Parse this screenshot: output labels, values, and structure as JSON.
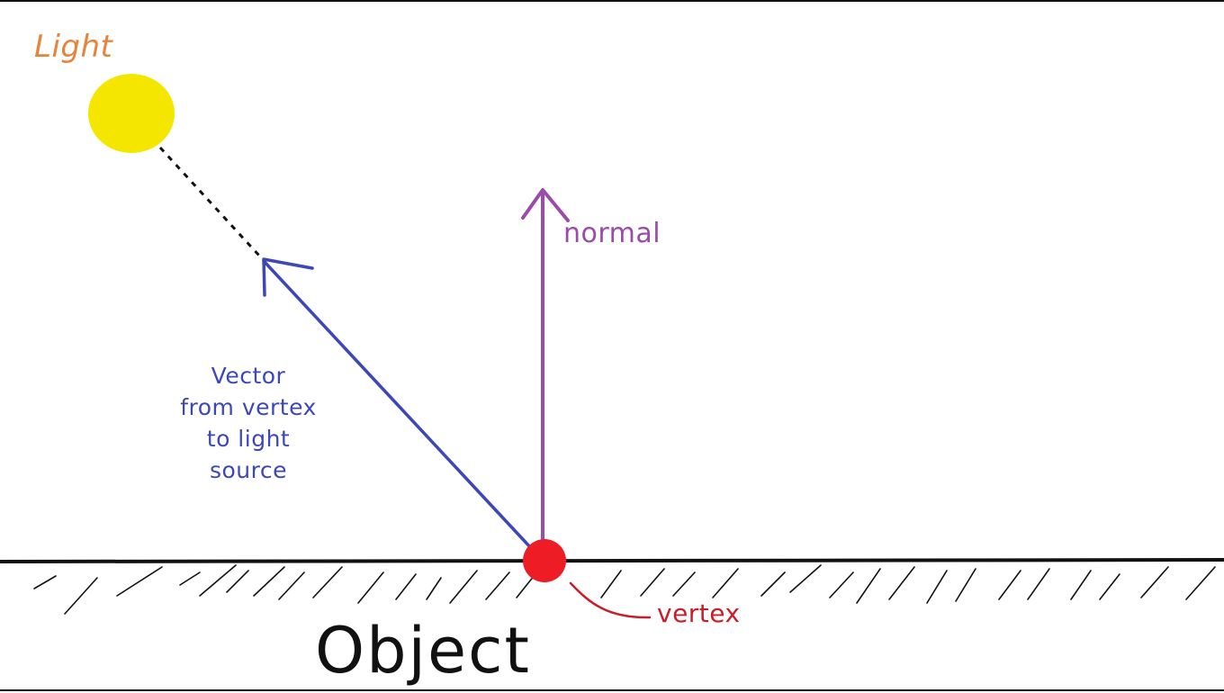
{
  "labels": {
    "light": "Light",
    "normal": "normal",
    "vector_lines": [
      "Vector",
      "from vertex",
      "to light",
      "source"
    ],
    "vertex": "vertex",
    "object": "Object"
  },
  "colors": {
    "light": "#f5e600",
    "light_label": "#e8833a",
    "normal": "#9b4ba8",
    "vector": "#3d47b8",
    "vertex": "#ee1c25",
    "vertex_label": "#c81e2a",
    "surface": "#111111"
  }
}
